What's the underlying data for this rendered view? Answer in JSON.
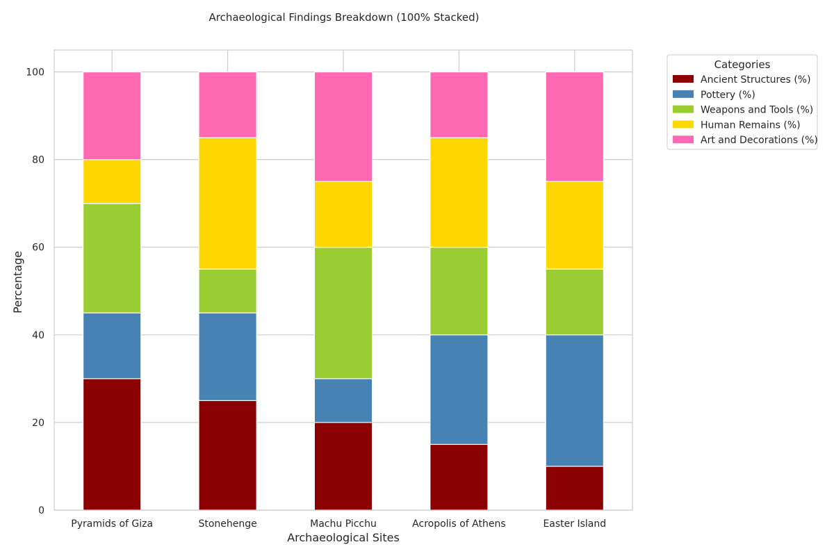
{
  "chart_data": {
    "type": "bar",
    "stacked": true,
    "title": "Archaeological Findings Breakdown (100% Stacked)",
    "xlabel": "Archaeological Sites",
    "ylabel": "Percentage",
    "ylim": [
      0,
      105
    ],
    "yticks": [
      0,
      20,
      40,
      60,
      80,
      100
    ],
    "grid": true,
    "legend_title": "Categories",
    "legend_position": "outside top-right",
    "categories": [
      "Pyramids of Giza",
      "Stonehenge",
      "Machu Picchu",
      "Acropolis of Athens",
      "Easter Island"
    ],
    "series": [
      {
        "name": "Ancient Structures (%)",
        "color": "#8b0000",
        "values": [
          30,
          25,
          20,
          15,
          10
        ]
      },
      {
        "name": "Pottery (%)",
        "color": "#4682b4",
        "values": [
          15,
          20,
          10,
          25,
          30
        ]
      },
      {
        "name": "Weapons and Tools (%)",
        "color": "#9acd32",
        "values": [
          25,
          10,
          30,
          20,
          15
        ]
      },
      {
        "name": "Human Remains (%)",
        "color": "#ffd700",
        "values": [
          10,
          30,
          15,
          25,
          20
        ]
      },
      {
        "name": "Art and Decorations (%)",
        "color": "#ff69b4",
        "values": [
          20,
          15,
          25,
          15,
          25
        ]
      }
    ]
  }
}
